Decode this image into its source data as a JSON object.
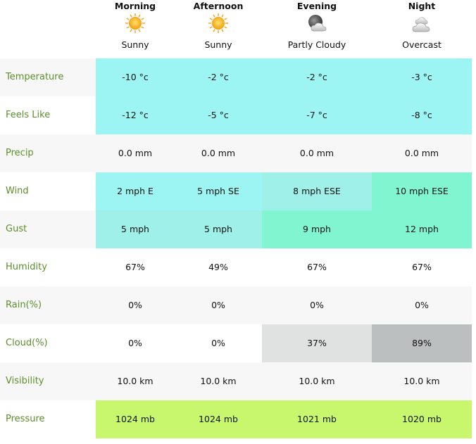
{
  "columns": [
    {
      "label": "Morning",
      "condition": "Sunny"
    },
    {
      "label": "Afternoon",
      "condition": "Sunny"
    },
    {
      "label": "Evening",
      "condition": "Partly Cloudy"
    },
    {
      "label": "Night",
      "condition": "Overcast"
    }
  ],
  "rows": [
    {
      "label": "Temperature",
      "values": [
        "-10 °c",
        "-2 °c",
        "-2 °c",
        "-3 °c"
      ]
    },
    {
      "label": "Feels Like",
      "values": [
        "-12 °c",
        "-5 °c",
        "-7 °c",
        "-8 °c"
      ]
    },
    {
      "label": "Precip",
      "values": [
        "0.0 mm",
        "0.0 mm",
        "0.0 mm",
        "0.0 mm"
      ]
    },
    {
      "label": "Wind",
      "values": [
        "2 mph E",
        "5 mph SE",
        "8 mph ESE",
        "10 mph ESE"
      ]
    },
    {
      "label": "Gust",
      "values": [
        "5 mph",
        "5 mph",
        "9 mph",
        "12 mph"
      ]
    },
    {
      "label": "Humidity",
      "values": [
        "67%",
        "49%",
        "67%",
        "67%"
      ]
    },
    {
      "label": "Rain(%)",
      "values": [
        "0%",
        "0%",
        "0%",
        "0%"
      ]
    },
    {
      "label": "Cloud(%)",
      "values": [
        "0%",
        "0%",
        "37%",
        "89%"
      ]
    },
    {
      "label": "Visibility",
      "values": [
        "10.0 km",
        "10.0 km",
        "10.0 km",
        "10.0 km"
      ]
    },
    {
      "label": "Pressure",
      "values": [
        "1024 mb",
        "1024 mb",
        "1021 mb",
        "1020 mb"
      ]
    }
  ]
}
